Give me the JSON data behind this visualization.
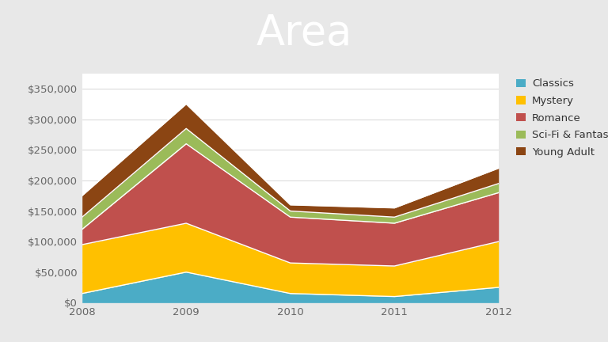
{
  "years": [
    2008,
    2009,
    2010,
    2011,
    2012
  ],
  "series": {
    "Classics": [
      15000,
      50000,
      15000,
      10000,
      25000
    ],
    "Mystery": [
      80000,
      80000,
      50000,
      50000,
      75000
    ],
    "Romance": [
      25000,
      130000,
      75000,
      70000,
      80000
    ],
    "Sci-Fi & Fantasy": [
      20000,
      25000,
      10000,
      10000,
      15000
    ],
    "Young Adult": [
      35000,
      40000,
      10000,
      15000,
      25000
    ]
  },
  "colors": {
    "Classics": "#4bacc6",
    "Mystery": "#ffc000",
    "Romance": "#c0504d",
    "Sci-Fi & Fantasy": "#9bbb59",
    "Young Adult": "#8b4513"
  },
  "title": "Area",
  "title_bg_color": "#2e7b45",
  "title_text_color": "#ffffff",
  "chart_bg_color": "#e8e8e8",
  "plot_bg_color": "#ffffff",
  "ylim": [
    0,
    375000
  ],
  "yticks": [
    0,
    50000,
    100000,
    150000,
    200000,
    250000,
    300000,
    350000
  ],
  "legend_order": [
    "Classics",
    "Mystery",
    "Romance",
    "Sci-Fi & Fantasy",
    "Young Adult"
  ],
  "title_font_size": 38,
  "tick_font_size": 9.5,
  "legend_font_size": 9.5
}
